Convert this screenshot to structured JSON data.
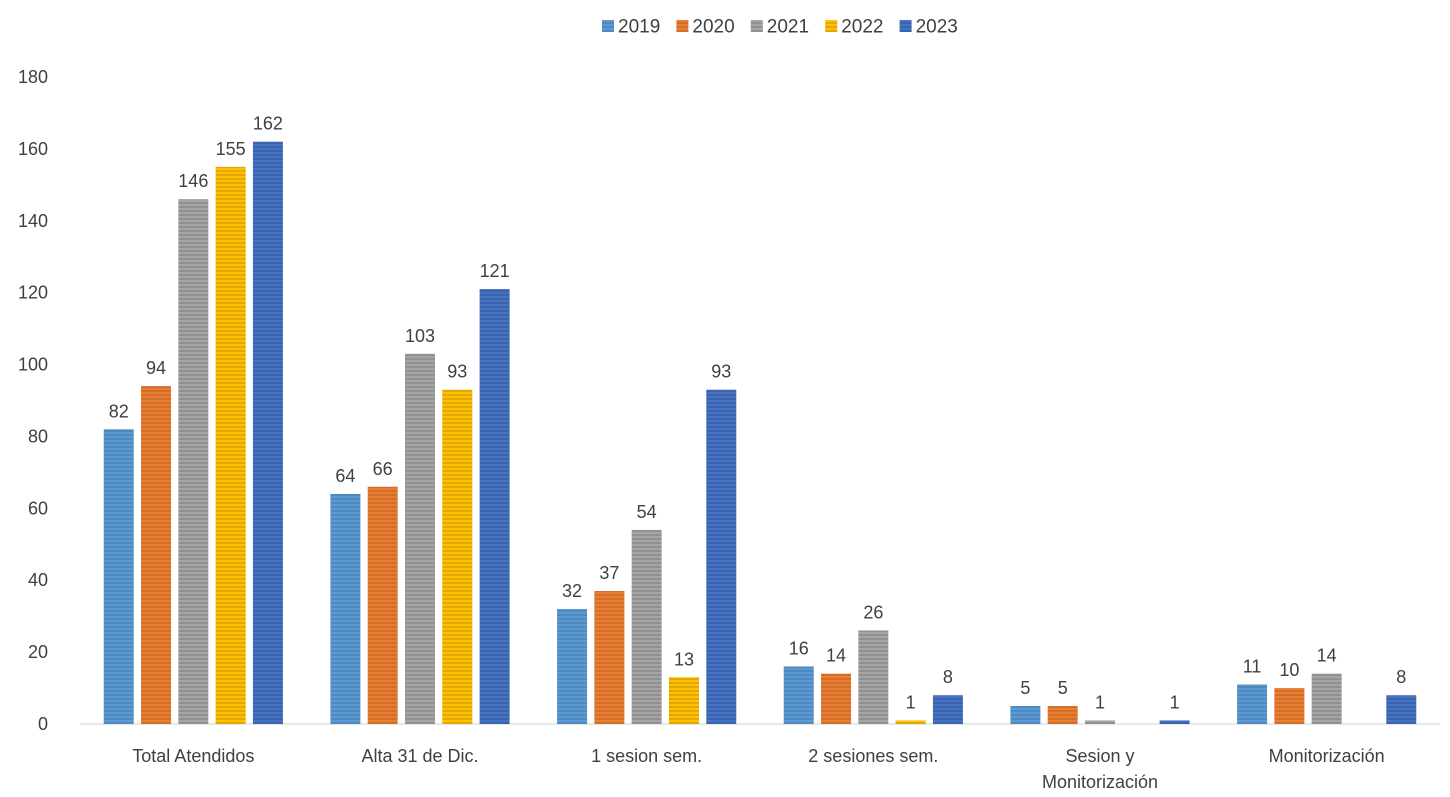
{
  "chart_data": {
    "type": "bar",
    "title": "",
    "xlabel": "",
    "ylabel": "",
    "ylim": [
      0,
      180
    ],
    "yticks": [
      0,
      20,
      40,
      60,
      80,
      100,
      120,
      140,
      160,
      180
    ],
    "grid": false,
    "legend_position": "top-center",
    "bar_pattern": "horizontal-stripes",
    "categories": [
      [
        "Total Atendidos"
      ],
      [
        "Alta 31 de Dic."
      ],
      [
        "1 sesion sem."
      ],
      [
        "2 sesiones sem."
      ],
      [
        "Sesion y",
        "Monitorización"
      ],
      [
        "Monitorización"
      ]
    ],
    "series": [
      {
        "name": "2019",
        "color": "#5B9BD5",
        "values": [
          82,
          64,
          32,
          16,
          5,
          11
        ]
      },
      {
        "name": "2020",
        "color": "#ED7D31",
        "values": [
          94,
          66,
          37,
          14,
          5,
          10
        ]
      },
      {
        "name": "2021",
        "color": "#A5A5A5",
        "values": [
          146,
          103,
          54,
          26,
          1,
          14
        ]
      },
      {
        "name": "2022",
        "color": "#FFC000",
        "values": [
          155,
          93,
          13,
          1,
          0,
          0
        ]
      },
      {
        "name": "2023",
        "color": "#4472C4",
        "values": [
          162,
          121,
          93,
          8,
          1,
          8
        ]
      }
    ],
    "data_labels_shown": [
      [
        true,
        true,
        true,
        true,
        true,
        true
      ],
      [
        true,
        true,
        true,
        true,
        true,
        true
      ],
      [
        true,
        true,
        true,
        true,
        true,
        true
      ],
      [
        true,
        true,
        true,
        true,
        false,
        false
      ],
      [
        true,
        true,
        true,
        true,
        true,
        true
      ]
    ]
  }
}
